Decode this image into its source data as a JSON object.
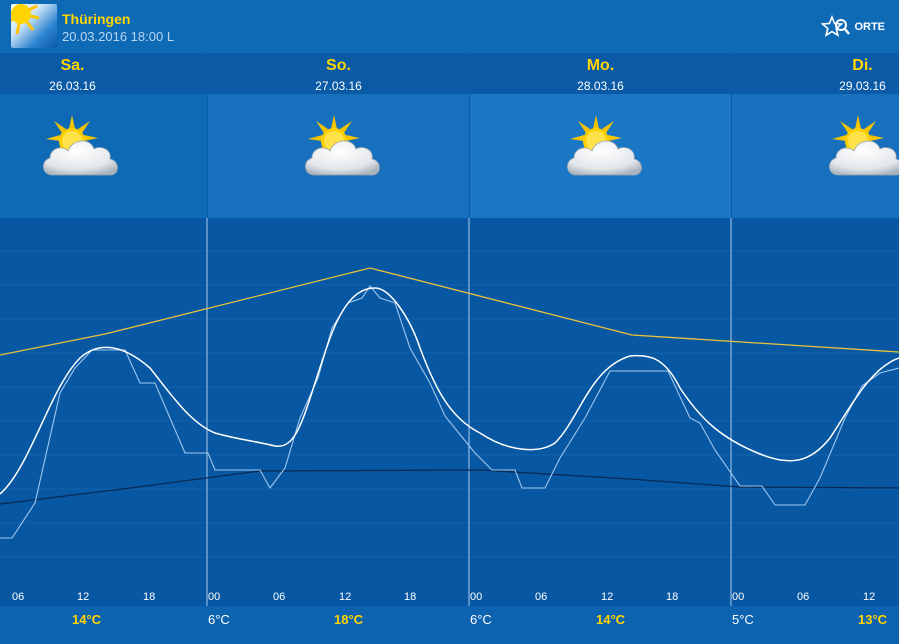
{
  "header": {
    "region": "Thüringen",
    "datetime": "20.03.2016 18:00 L",
    "orte_label": "ORTE",
    "logo_icon": "sun-logo-icon",
    "orte_icon": "star-search-icon"
  },
  "colors": {
    "accent_yellow": "#ffd400",
    "max_line": "#e8c23a",
    "min_line": "#0a2a55",
    "curve": "#ffffff",
    "step": "#9fc7ef"
  },
  "days": [
    {
      "name": "Sa.",
      "date": "26.03.16",
      "icon": "sun-cloud-icon",
      "max": "14°C",
      "min": ""
    },
    {
      "name": "So.",
      "date": "27.03.16",
      "icon": "sun-cloud-icon",
      "max": "18°C",
      "min": "6°C"
    },
    {
      "name": "Mo.",
      "date": "28.03.16",
      "icon": "sun-cloud-icon",
      "max": "14°C",
      "min": "6°C"
    },
    {
      "name": "Di.",
      "date": "29.03.16",
      "icon": "sun-cloud-icon",
      "max": "13°C",
      "min": "5°C"
    }
  ],
  "hour_labels": [
    "06",
    "12",
    "18",
    "00",
    "06",
    "12",
    "18",
    "00",
    "06",
    "12",
    "18",
    "00",
    "06",
    "12"
  ]
}
